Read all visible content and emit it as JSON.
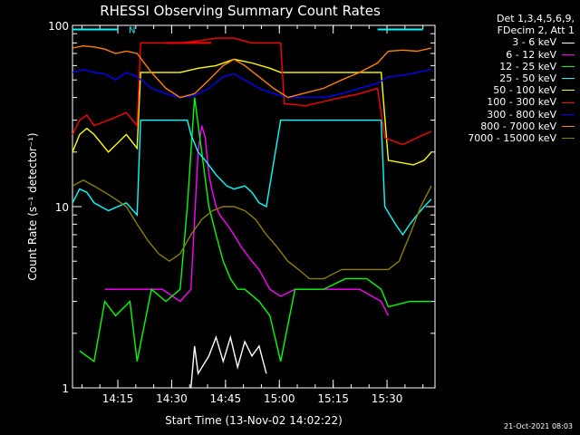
{
  "chart_data": {
    "type": "line",
    "title": "RHESSI Observing Summary Count Rates",
    "xlabel": "Start Time (13-Nov-02 14:02:22)",
    "ylabel": "Count Rate (s⁻¹ detector⁻¹)",
    "ylog": true,
    "ylim": [
      1,
      100
    ],
    "x_ticks": [
      "14:15",
      "14:30",
      "14:45",
      "15:00",
      "15:15",
      "15:30"
    ],
    "y_ticks": [
      "1",
      "10",
      "100"
    ],
    "x_unit": "minutes after 14:02:22",
    "xlim": [
      0,
      101
    ],
    "legend_header": [
      "Det 1,3,4,5,6,9,",
      "FDecim 2, Att 1"
    ],
    "legend_position": "right",
    "n_marker": "N",
    "timestamp": "21-Oct-2021 08:03",
    "series": [
      {
        "name": "3 - 6 keV",
        "color": "#ffffff",
        "points": [
          [
            33,
            1
          ],
          [
            34,
            1.7
          ],
          [
            35,
            1.2
          ],
          [
            38,
            1.5
          ],
          [
            40,
            1.9
          ],
          [
            42,
            1.4
          ],
          [
            44,
            1.9
          ],
          [
            46,
            1.3
          ],
          [
            48,
            1.8
          ],
          [
            50,
            1.5
          ],
          [
            52,
            1.7
          ],
          [
            54,
            1.2
          ]
        ]
      },
      {
        "name": "6 - 12 keV",
        "color": "#ff00ff",
        "points": [
          [
            9,
            3.5
          ],
          [
            20,
            3.5
          ],
          [
            25,
            3.5
          ],
          [
            30,
            3.0
          ],
          [
            33,
            3.5
          ],
          [
            35,
            20
          ],
          [
            36,
            28
          ],
          [
            37,
            24
          ],
          [
            38,
            15
          ],
          [
            39,
            12
          ],
          [
            40,
            10
          ],
          [
            41,
            9
          ],
          [
            43,
            8
          ],
          [
            45,
            7
          ],
          [
            47,
            6
          ],
          [
            50,
            5
          ],
          [
            52,
            4.5
          ],
          [
            55,
            3.5
          ],
          [
            58,
            3.2
          ],
          [
            62,
            3.5
          ],
          [
            70,
            3.5
          ],
          [
            80,
            3.5
          ],
          [
            86,
            3.0
          ],
          [
            88,
            2.5
          ]
        ]
      },
      {
        "name": "12 - 25 keV",
        "color": "#00ff00",
        "points": [
          [
            2,
            1.6
          ],
          [
            6,
            1.4
          ],
          [
            9,
            3.0
          ],
          [
            12,
            2.5
          ],
          [
            16,
            3.0
          ],
          [
            18,
            1.4
          ],
          [
            22,
            3.5
          ],
          [
            26,
            3.0
          ],
          [
            30,
            3.5
          ],
          [
            32,
            10
          ],
          [
            34,
            40
          ],
          [
            36,
            20
          ],
          [
            38,
            10
          ],
          [
            40,
            7
          ],
          [
            42,
            5
          ],
          [
            44,
            4
          ],
          [
            46,
            3.5
          ],
          [
            48,
            3.5
          ],
          [
            52,
            3.0
          ],
          [
            55,
            2.5
          ],
          [
            58,
            1.4
          ],
          [
            62,
            3.5
          ],
          [
            70,
            3.5
          ],
          [
            76,
            4.0
          ],
          [
            82,
            4.0
          ],
          [
            86,
            3.5
          ],
          [
            88,
            2.8
          ],
          [
            94,
            3.0
          ],
          [
            100,
            3.0
          ]
        ]
      },
      {
        "name": "25 - 50 keV",
        "color": "#00ffff",
        "points": [
          [
            0,
            10.5
          ],
          [
            2,
            12.5
          ],
          [
            4,
            12.0
          ],
          [
            6,
            10.5
          ],
          [
            10,
            9.5
          ],
          [
            15,
            10.5
          ],
          [
            18,
            9.0
          ],
          [
            19,
            30
          ],
          [
            22,
            30
          ],
          [
            30,
            30
          ],
          [
            32,
            30
          ],
          [
            33,
            25
          ],
          [
            35,
            20
          ],
          [
            37,
            18
          ],
          [
            40,
            15
          ],
          [
            43,
            13
          ],
          [
            45,
            12.5
          ],
          [
            48,
            13
          ],
          [
            50,
            12
          ],
          [
            52,
            10.5
          ],
          [
            54,
            10
          ],
          [
            58,
            30
          ],
          [
            70,
            30
          ],
          [
            82,
            30
          ],
          [
            86,
            30
          ],
          [
            87,
            10
          ],
          [
            90,
            8
          ],
          [
            92,
            7
          ],
          [
            94,
            8
          ],
          [
            96,
            9
          ],
          [
            98,
            10
          ],
          [
            100,
            11
          ]
        ]
      },
      {
        "name": "50 - 100 keV",
        "color": "#ffff00",
        "points": [
          [
            0,
            20
          ],
          [
            2,
            25
          ],
          [
            4,
            27
          ],
          [
            6,
            25
          ],
          [
            10,
            20
          ],
          [
            15,
            25
          ],
          [
            18,
            21
          ],
          [
            19,
            55
          ],
          [
            25,
            55
          ],
          [
            30,
            55
          ],
          [
            35,
            58
          ],
          [
            40,
            60
          ],
          [
            45,
            65
          ],
          [
            50,
            62
          ],
          [
            55,
            58
          ],
          [
            58,
            55
          ],
          [
            60,
            55
          ],
          [
            70,
            55
          ],
          [
            80,
            55
          ],
          [
            86,
            55
          ],
          [
            88,
            18
          ],
          [
            95,
            17
          ],
          [
            98,
            18
          ],
          [
            100,
            20
          ]
        ]
      },
      {
        "name": "100 - 300 keV",
        "color": "#ff0000",
        "points": [
          [
            0,
            25
          ],
          [
            2,
            30
          ],
          [
            4,
            32
          ],
          [
            6,
            28
          ],
          [
            10,
            30
          ],
          [
            15,
            33
          ],
          [
            18,
            28
          ],
          [
            19,
            80
          ],
          [
            25,
            80
          ],
          [
            30,
            80
          ],
          [
            35,
            82
          ],
          [
            40,
            85
          ],
          [
            45,
            85
          ],
          [
            50,
            80
          ],
          [
            55,
            80
          ],
          [
            58,
            80
          ],
          [
            59,
            37
          ],
          [
            65,
            36
          ],
          [
            70,
            38
          ],
          [
            75,
            40
          ],
          [
            80,
            42
          ],
          [
            85,
            45
          ],
          [
            87,
            24
          ],
          [
            92,
            22
          ],
          [
            96,
            24
          ],
          [
            100,
            26
          ]
        ]
      },
      {
        "name": "300 - 800 keV",
        "color": "#0000ff",
        "points": [
          [
            0,
            55
          ],
          [
            3,
            57
          ],
          [
            6,
            55
          ],
          [
            9,
            54
          ],
          [
            12,
            50
          ],
          [
            15,
            55
          ],
          [
            18,
            52
          ],
          [
            22,
            45
          ],
          [
            26,
            42
          ],
          [
            30,
            40
          ],
          [
            34,
            41
          ],
          [
            38,
            45
          ],
          [
            42,
            52
          ],
          [
            45,
            54
          ],
          [
            48,
            50
          ],
          [
            52,
            45
          ],
          [
            56,
            42
          ],
          [
            60,
            40
          ],
          [
            64,
            40
          ],
          [
            70,
            40
          ],
          [
            75,
            42
          ],
          [
            80,
            45
          ],
          [
            85,
            48
          ],
          [
            88,
            52
          ],
          [
            92,
            53
          ],
          [
            96,
            55
          ],
          [
            100,
            57
          ]
        ]
      },
      {
        "name": "800 - 7000 keV",
        "color": "#ff8000",
        "points": [
          [
            0,
            75
          ],
          [
            3,
            77
          ],
          [
            6,
            76
          ],
          [
            9,
            74
          ],
          [
            12,
            70
          ],
          [
            15,
            72
          ],
          [
            18,
            70
          ],
          [
            22,
            55
          ],
          [
            26,
            45
          ],
          [
            30,
            40
          ],
          [
            34,
            42
          ],
          [
            38,
            50
          ],
          [
            42,
            60
          ],
          [
            45,
            65
          ],
          [
            48,
            60
          ],
          [
            52,
            52
          ],
          [
            56,
            45
          ],
          [
            60,
            40
          ],
          [
            64,
            42
          ],
          [
            70,
            45
          ],
          [
            75,
            50
          ],
          [
            80,
            55
          ],
          [
            85,
            62
          ],
          [
            88,
            72
          ],
          [
            92,
            73
          ],
          [
            96,
            72
          ],
          [
            100,
            75
          ]
        ]
      },
      {
        "name": "7000 - 15000 keV",
        "color": "#8b8000",
        "points": [
          [
            0,
            13
          ],
          [
            3,
            14
          ],
          [
            6,
            13
          ],
          [
            9,
            12
          ],
          [
            12,
            11
          ],
          [
            15,
            10
          ],
          [
            18,
            8
          ],
          [
            21,
            6.5
          ],
          [
            24,
            5.5
          ],
          [
            27,
            5.0
          ],
          [
            30,
            5.5
          ],
          [
            33,
            7
          ],
          [
            36,
            8.5
          ],
          [
            39,
            9.5
          ],
          [
            42,
            10
          ],
          [
            45,
            10
          ],
          [
            48,
            9.5
          ],
          [
            51,
            8.5
          ],
          [
            54,
            7
          ],
          [
            57,
            6
          ],
          [
            60,
            5
          ],
          [
            63,
            4.5
          ],
          [
            66,
            4
          ],
          [
            70,
            4
          ],
          [
            75,
            4.5
          ],
          [
            80,
            4.5
          ],
          [
            85,
            4.5
          ],
          [
            88,
            4.5
          ],
          [
            91,
            5
          ],
          [
            94,
            7
          ],
          [
            97,
            10
          ],
          [
            100,
            13
          ]
        ]
      }
    ],
    "attenuator_markers": [
      {
        "x": 0,
        "y": 95,
        "color": "#00ffff"
      },
      {
        "x": 85,
        "y": 95,
        "color": "#00ffff"
      },
      {
        "x": 26,
        "y": 80,
        "color": "#ff0000"
      }
    ]
  }
}
